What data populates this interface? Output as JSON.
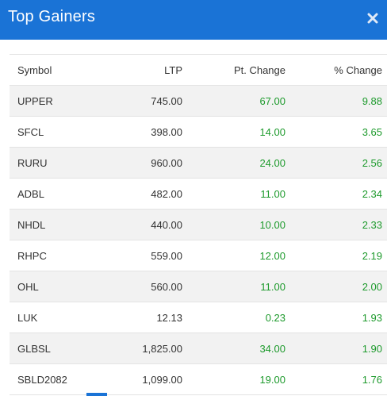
{
  "header": {
    "title": "Top Gainers",
    "close_icon": "close-icon",
    "color": "#1a73d6"
  },
  "table": {
    "columns": [
      "Symbol",
      "LTP",
      "Pt. Change",
      "% Change"
    ],
    "positive_color": "#1d9a2c",
    "rows": [
      {
        "symbol": "UPPER",
        "ltp": "745.00",
        "pt_change": "67.00",
        "pct_change": "9.88"
      },
      {
        "symbol": "SFCL",
        "ltp": "398.00",
        "pt_change": "14.00",
        "pct_change": "3.65"
      },
      {
        "symbol": "RURU",
        "ltp": "960.00",
        "pt_change": "24.00",
        "pct_change": "2.56"
      },
      {
        "symbol": "ADBL",
        "ltp": "482.00",
        "pt_change": "11.00",
        "pct_change": "2.34"
      },
      {
        "symbol": "NHDL",
        "ltp": "440.00",
        "pt_change": "10.00",
        "pct_change": "2.33"
      },
      {
        "symbol": "RHPC",
        "ltp": "559.00",
        "pt_change": "12.00",
        "pct_change": "2.19"
      },
      {
        "symbol": "OHL",
        "ltp": "560.00",
        "pt_change": "11.00",
        "pct_change": "2.00"
      },
      {
        "symbol": "LUK",
        "ltp": "12.13",
        "pt_change": "0.23",
        "pct_change": "1.93"
      },
      {
        "symbol": "GLBSL",
        "ltp": "1,825.00",
        "pt_change": "34.00",
        "pct_change": "1.90"
      },
      {
        "symbol": "SBLD2082",
        "ltp": "1,099.00",
        "pt_change": "19.00",
        "pct_change": "1.76"
      }
    ]
  }
}
